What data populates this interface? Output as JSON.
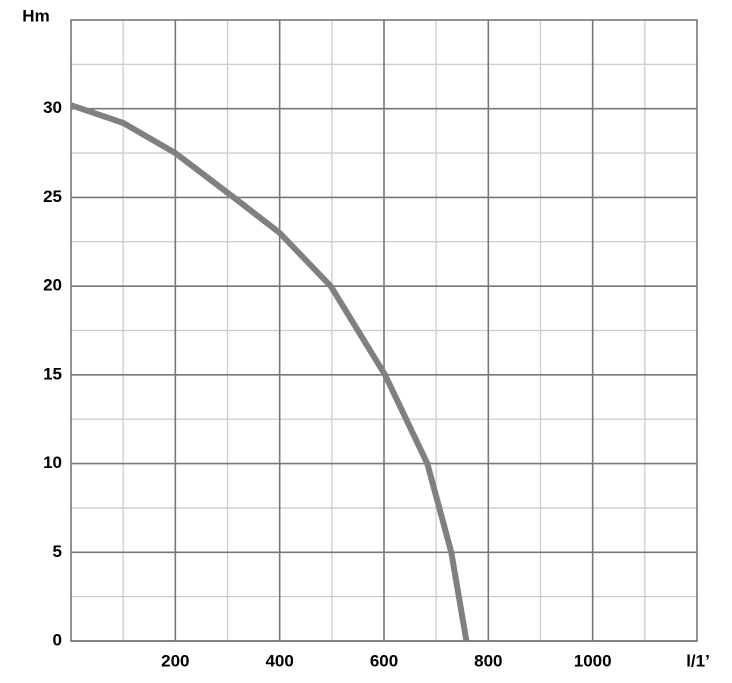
{
  "chart_data": {
    "type": "line",
    "y_label": "Hm",
    "x_label": "l/1’",
    "x": [
      0,
      100,
      200,
      312,
      400,
      498,
      602,
      683,
      729,
      758
    ],
    "series": [
      {
        "color": "#808080",
        "values": [
          30.2,
          29.2,
          27.5,
          25,
          23,
          20,
          15,
          10,
          5,
          0
        ]
      }
    ],
    "xlim": [
      0,
      1200
    ],
    "xticks": [
      200,
      400,
      600,
      800,
      1000
    ],
    "x_minor_ticks": [
      100,
      300,
      500,
      700,
      900,
      1100
    ],
    "ylim": [
      0,
      35
    ],
    "yticks": [
      0,
      5,
      10,
      15,
      20,
      25,
      30
    ],
    "y_minor_ticks": [
      2.5,
      7.5,
      12.5,
      17.5,
      22.5,
      27.5,
      32.5
    ],
    "grid": true
  }
}
